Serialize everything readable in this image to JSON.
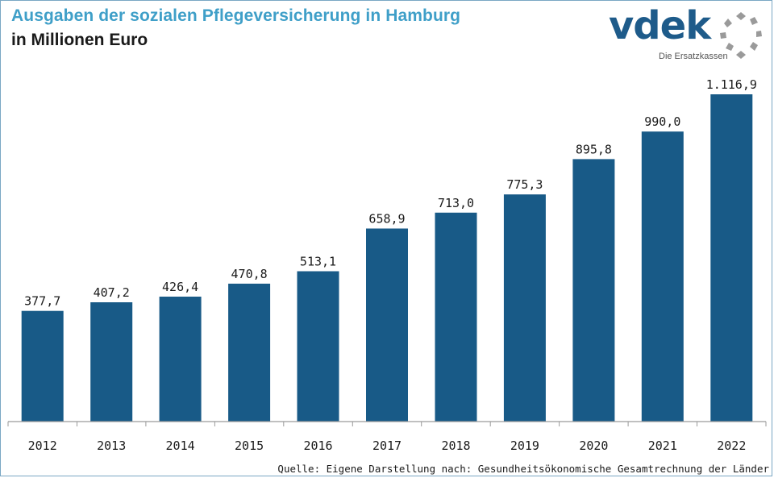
{
  "header": {
    "title": "Ausgaben der sozialen Pflegeversicherung in Hamburg",
    "subtitle": "in Millionen Euro"
  },
  "logo": {
    "wordmark": "vdek",
    "tagline": "Die Ersatzkassen",
    "icon": "ring-of-dots-icon",
    "color": "#1e5b8a"
  },
  "colors": {
    "bar": "#185a87",
    "title": "#3f9fc8",
    "axis": "#9a9a9a"
  },
  "chart_data": {
    "type": "bar",
    "title": "Ausgaben der sozialen Pflegeversicherung in Hamburg",
    "subtitle": "in Millionen Euro",
    "categories": [
      "2012",
      "2013",
      "2014",
      "2015",
      "2016",
      "2017",
      "2018",
      "2019",
      "2020",
      "2021",
      "2022"
    ],
    "values": [
      377.7,
      407.2,
      426.4,
      470.8,
      513.1,
      658.9,
      713.0,
      775.3,
      895.8,
      990.0,
      1116.9
    ],
    "value_labels": [
      "377,7",
      "407,2",
      "426,4",
      "470,8",
      "513,1",
      "658,9",
      "713,0",
      "775,3",
      "895,8",
      "990,0",
      "1.116,9"
    ],
    "xlabel": "",
    "ylabel": "",
    "ylim": [
      0,
      1150
    ],
    "grid": false,
    "legend": "none"
  },
  "source": "Quelle: Eigene Darstellung nach: Gesundheitsökonomische Gesamtrechnung der Länder"
}
